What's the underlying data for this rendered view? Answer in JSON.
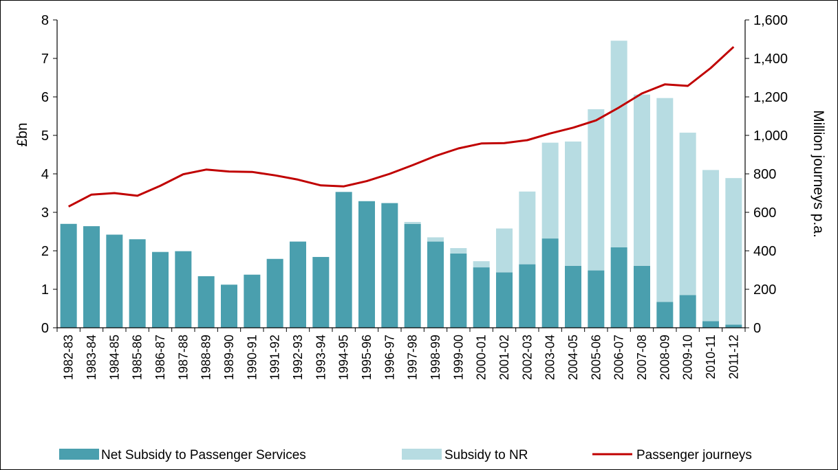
{
  "chart_data": {
    "type": "bar",
    "subtype": "stacked-bar-with-line",
    "categories": [
      "1982-83",
      "1983-84",
      "1984-85",
      "1985-86",
      "1986-87",
      "1987-88",
      "1988-89",
      "1989-90",
      "1990-91",
      "1991-92",
      "1992-93",
      "1993-94",
      "1994-95",
      "1995-96",
      "1996-97",
      "1997-98",
      "1998-99",
      "1999-00",
      "2000-01",
      "2001-02",
      "2002-03",
      "2003-04",
      "2004-05",
      "2005-06",
      "2006-07",
      "2007-08",
      "2008-09",
      "2009-10",
      "2010-11",
      "2011-12"
    ],
    "series": [
      {
        "name": "Net Subsidy to Passenger Services",
        "kind": "bar",
        "axis": "left",
        "color": "#4a9fae",
        "values": [
          2.7,
          2.64,
          2.42,
          2.3,
          1.97,
          1.99,
          1.34,
          1.12,
          1.38,
          1.79,
          2.24,
          1.84,
          3.53,
          3.29,
          3.24,
          2.7,
          2.24,
          1.93,
          1.57,
          1.44,
          1.65,
          2.32,
          1.61,
          1.49,
          2.09,
          1.61,
          0.67,
          0.85,
          0.17,
          0.08
        ]
      },
      {
        "name": "Subsidy to NR",
        "kind": "bar",
        "axis": "left",
        "color": "#b7dce2",
        "values": [
          0,
          0,
          0,
          0,
          0,
          0,
          0,
          0,
          0,
          0,
          0,
          0,
          0,
          0,
          0,
          0.05,
          0.11,
          0.14,
          0.16,
          1.14,
          1.89,
          2.49,
          3.23,
          4.19,
          5.37,
          4.45,
          5.3,
          4.22,
          3.93,
          3.81
        ]
      },
      {
        "name": "Passenger journeys",
        "kind": "line",
        "axis": "right",
        "color": "#c00000",
        "values": [
          630,
          692,
          700,
          686,
          738,
          798,
          822,
          812,
          810,
          792,
          770,
          740,
          735,
          762,
          800,
          845,
          893,
          932,
          958,
          960,
          975,
          1010,
          1040,
          1078,
          1145,
          1218,
          1265,
          1257,
          1350,
          1460
        ]
      }
    ],
    "ylabel": "£bn",
    "y2label": "Million journeys p.a.",
    "ylim": [
      0,
      8
    ],
    "yticks": [
      "0",
      "1",
      "2",
      "3",
      "4",
      "5",
      "6",
      "7",
      "8"
    ],
    "y2lim": [
      0,
      1600
    ],
    "y2ticks": [
      "0",
      "200",
      "400",
      "600",
      "800",
      "1,000",
      "1,200",
      "1,400",
      "1,600"
    ],
    "grid": false,
    "legend_position": "bottom"
  }
}
